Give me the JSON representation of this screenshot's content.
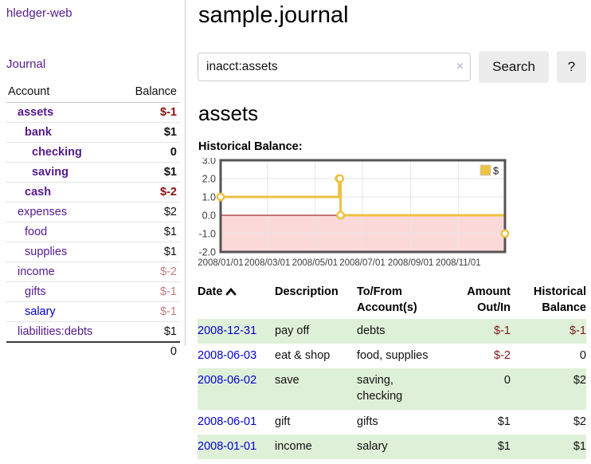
{
  "sidebar": {
    "brand": "hledger-web",
    "journal_link": "Journal",
    "account_col": "Account",
    "balance_col": "Balance",
    "accounts": [
      {
        "name": "assets",
        "balance": "$-1",
        "level": 1,
        "bold": true,
        "balance_style": "negstrong"
      },
      {
        "name": "bank",
        "balance": "$1",
        "level": 2,
        "bold": true,
        "balance_style": "normal"
      },
      {
        "name": "checking",
        "balance": "0",
        "level": 3,
        "bold": true,
        "balance_style": "normal"
      },
      {
        "name": "saving",
        "balance": "$1",
        "level": 3,
        "bold": true,
        "balance_style": "normal"
      },
      {
        "name": "cash",
        "balance": "$-2",
        "level": 2,
        "bold": true,
        "balance_style": "negstrong"
      },
      {
        "name": "expenses",
        "balance": "$2",
        "level": 1,
        "bold": false,
        "balance_style": "normal"
      },
      {
        "name": "food",
        "balance": "$1",
        "level": 2,
        "bold": false,
        "balance_style": "normal"
      },
      {
        "name": "supplies",
        "balance": "$1",
        "level": 2,
        "bold": false,
        "balance_style": "normal"
      },
      {
        "name": "income",
        "balance": "$-2",
        "level": 1,
        "bold": false,
        "balance_style": "negsoft"
      },
      {
        "name": "gifts",
        "balance": "$-1",
        "level": 2,
        "bold": false,
        "balance_style": "negsoft"
      },
      {
        "name": "salary",
        "balance": "$-1",
        "level": 2,
        "bold": false,
        "balance_style": "negsoft",
        "link_color": "blue"
      },
      {
        "name": "liabilities:debts",
        "balance": "$1",
        "level": 1,
        "bold": false,
        "balance_style": "normal"
      }
    ],
    "total_balance": "0"
  },
  "header": {
    "title": "sample.journal"
  },
  "search": {
    "value": "inacct:assets",
    "clear_icon": "×",
    "search_button": "Search",
    "help_button": "?"
  },
  "account_view": {
    "heading": "assets",
    "chart_title": "Historical Balance:"
  },
  "chart_data": {
    "type": "line",
    "step": true,
    "title": "Historical Balance:",
    "legend": [
      {
        "label": "$",
        "color": "#edc240",
        "position": "top-right"
      }
    ],
    "ylim": [
      -2,
      3
    ],
    "y_ticks": [
      "3.0",
      "2.0",
      "1.0",
      "0.0",
      "-1.0",
      "-2.0"
    ],
    "x_ticks": [
      {
        "label": "2008/01/01",
        "day": 0
      },
      {
        "label": "2008/03/01",
        "day": 60
      },
      {
        "label": "2008/05/01",
        "day": 121
      },
      {
        "label": "2008/07/01",
        "day": 182
      },
      {
        "label": "2008/09/01",
        "day": 244
      },
      {
        "label": "2008/11/01",
        "day": 305
      }
    ],
    "x_total_days": 365,
    "points": [
      {
        "date": "2008-01-01",
        "day": 0,
        "value": 1
      },
      {
        "date": "2008-06-01",
        "day": 152,
        "value": 2
      },
      {
        "date": "2008-06-02",
        "day": 153,
        "value": 2
      },
      {
        "date": "2008-06-03",
        "day": 154,
        "value": 0
      },
      {
        "date": "2008-12-31",
        "day": 365,
        "value": -1
      }
    ],
    "line_color": "#edc240",
    "marker_fill": "#ffffff",
    "negative_region_fill": "#fbd9d9",
    "zero_line_color": "#8b0000",
    "grid_color": "#e6e6e6",
    "border_color": "#545454",
    "tick_label_color": "#3d3d3d"
  },
  "register": {
    "columns": {
      "date": "Date",
      "description": "Description",
      "accounts": "To/From Account(s)",
      "amount": "Amount Out/In",
      "balance": "Historical Balance"
    },
    "sort_icon": "chevron-up",
    "rows": [
      {
        "date": "2008-12-31",
        "description": "pay off",
        "accounts": "debts",
        "amount": "$-1",
        "amount_neg": true,
        "balance": "$-1",
        "balance_neg": true
      },
      {
        "date": "2008-06-03",
        "description": "eat & shop",
        "accounts": "food, supplies",
        "amount": "$-2",
        "amount_neg": true,
        "balance": "0",
        "balance_neg": false
      },
      {
        "date": "2008-06-02",
        "description": "save",
        "accounts": "saving, checking",
        "amount": "0",
        "amount_neg": false,
        "balance": "$2",
        "balance_neg": false
      },
      {
        "date": "2008-06-01",
        "description": "gift",
        "accounts": "gifts",
        "amount": "$1",
        "amount_neg": false,
        "balance": "$2",
        "balance_neg": false
      },
      {
        "date": "2008-01-01",
        "description": "income",
        "accounts": "salary",
        "amount": "$1",
        "amount_neg": false,
        "balance": "$1",
        "balance_neg": false
      }
    ]
  }
}
